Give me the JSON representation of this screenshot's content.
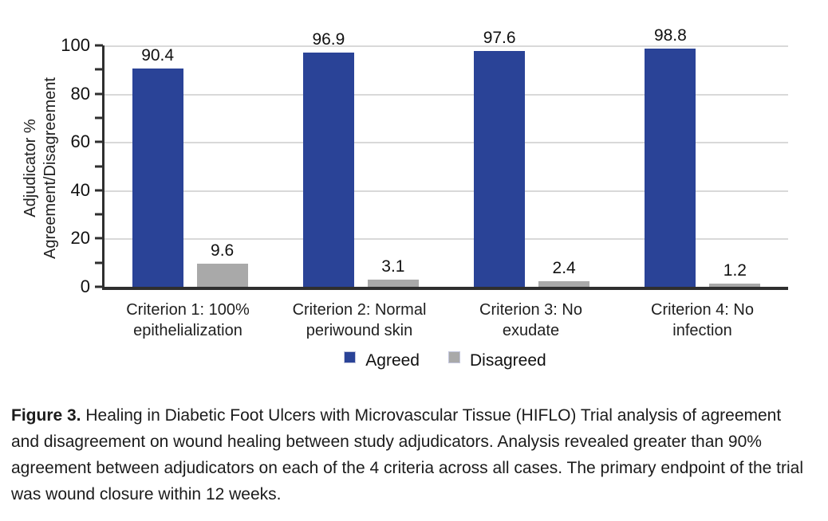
{
  "chart_data": {
    "type": "bar",
    "title": "",
    "categories": [
      "Criterion 1: 100% epithelialization",
      "Criterion 2: Normal periwound skin",
      "Criterion 3: No exudate",
      "Criterion 4: No infection"
    ],
    "series": [
      {
        "name": "Agreed",
        "color": "#2a4397",
        "values": [
          90.4,
          96.9,
          97.6,
          98.8
        ]
      },
      {
        "name": "Disagreed",
        "color": "#a9a9a9",
        "values": [
          9.6,
          3.1,
          2.4,
          1.2
        ]
      }
    ],
    "ylabel_lines": [
      "Adjudicator %",
      "Agreement/Disagreement"
    ],
    "ylim": [
      0,
      100
    ],
    "yticks": [
      "100",
      "80",
      "60",
      "40",
      "20",
      "0"
    ],
    "minor_tick_step": 10,
    "grid": "horizontal-major",
    "legend_position": "bottom-center",
    "value_labels": true,
    "colors": {
      "gridline": "#d9d9d9",
      "axis": "#2f2f2f"
    }
  },
  "caption": {
    "label": "Figure 3.",
    "text": "Healing in Diabetic Foot Ulcers with Microvascular Tissue (HIFLO) Trial analysis of agreement and disagreement on wound healing between study adjudicators. Analysis revealed greater than 90% agreement between adjudicators on each of the 4 criteria across all cases. The primary endpoint of the trial was wound closure within 12 weeks."
  }
}
